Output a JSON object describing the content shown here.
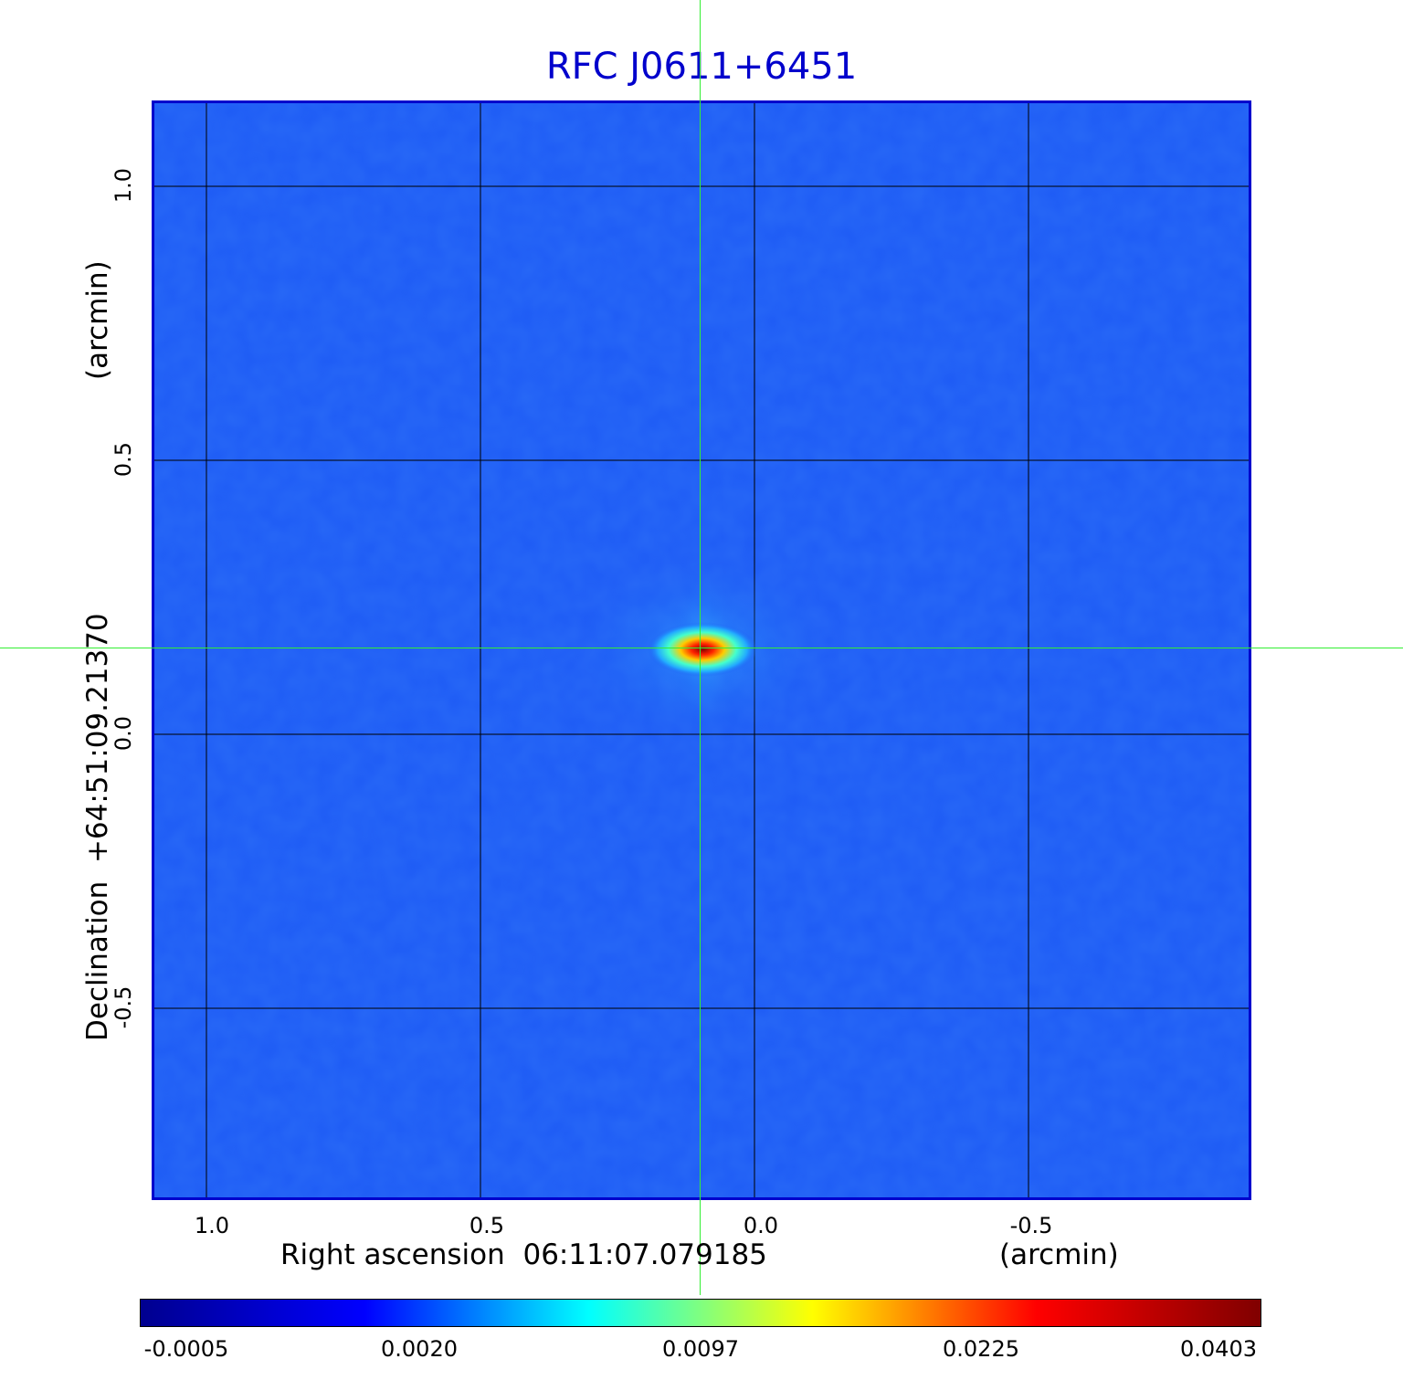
{
  "title": "RFC J0611+6451",
  "x_axis": {
    "label": "Right ascension  06:11:07.079185",
    "unit": "(arcmin)",
    "ticks": [
      "1.0",
      "0.5",
      "0.0",
      "-0.5"
    ]
  },
  "y_axis": {
    "label": "Declination  +64:51:09.21370",
    "unit": "(arcmin)",
    "ticks": [
      "1.0",
      "0.5",
      "0.0",
      "-0.5"
    ]
  },
  "colorbar": {
    "ticks": [
      "-0.0005",
      "0.0020",
      "0.0097",
      "0.0225",
      "0.0403"
    ],
    "colormap": [
      "#00008f",
      "#0000ff",
      "#00ffff",
      "#ffff00",
      "#ff0000",
      "#800000"
    ]
  },
  "colors": {
    "title": "#0000cc",
    "frame": "#0000cc",
    "background": "#1e5bf5",
    "crosshair": "#33ee33"
  }
}
